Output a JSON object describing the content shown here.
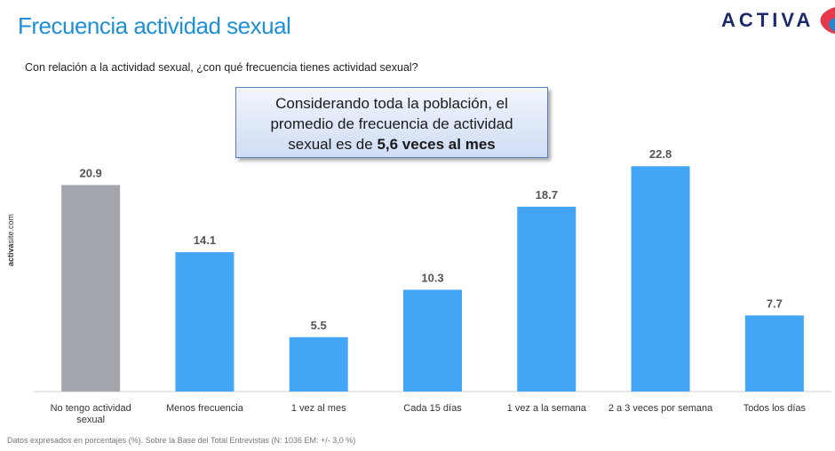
{
  "header": {
    "title": "Frecuencia actividad sexual",
    "brand": "ACTIVA"
  },
  "question": "Con relación a la actividad sexual, ¿con qué frecuencia tienes actividad sexual?",
  "callout": {
    "line1": "Considerando toda la población, el",
    "line2": "promedio de frecuencia de actividad",
    "line3_prefix": "sexual es de ",
    "line3_bold": "5,6 veces al mes"
  },
  "side_label": {
    "prefix": "activa",
    "suffix": "site.com"
  },
  "footnote": "Datos expresados en porcentajes (%). Sobre la Base del Total Entrevistas (N: 1036  EM: +/- 3,0 %)",
  "colors": {
    "highlight": "#a3a7ad",
    "bar": "#42a5f5",
    "title": "#1f8fd6",
    "brand": "#1e2b6a"
  },
  "chart_data": {
    "type": "bar",
    "categories": [
      [
        "No tengo actividad",
        "sexual"
      ],
      [
        "Menos frecuencia"
      ],
      [
        "1 vez al mes"
      ],
      [
        "Cada 15 días"
      ],
      [
        "1 vez a la semana"
      ],
      [
        "2 a 3 veces por semana"
      ],
      [
        "Todos los días"
      ]
    ],
    "values": [
      20.9,
      14.1,
      5.5,
      10.3,
      18.7,
      22.8,
      7.7
    ],
    "value_labels": [
      "20.9",
      "14.1",
      "5.5",
      "10.3",
      "18.7",
      "22.8",
      "7.7"
    ],
    "highlight_index": 0,
    "ylim": [
      0,
      23
    ],
    "grid": false,
    "legend": "none"
  }
}
